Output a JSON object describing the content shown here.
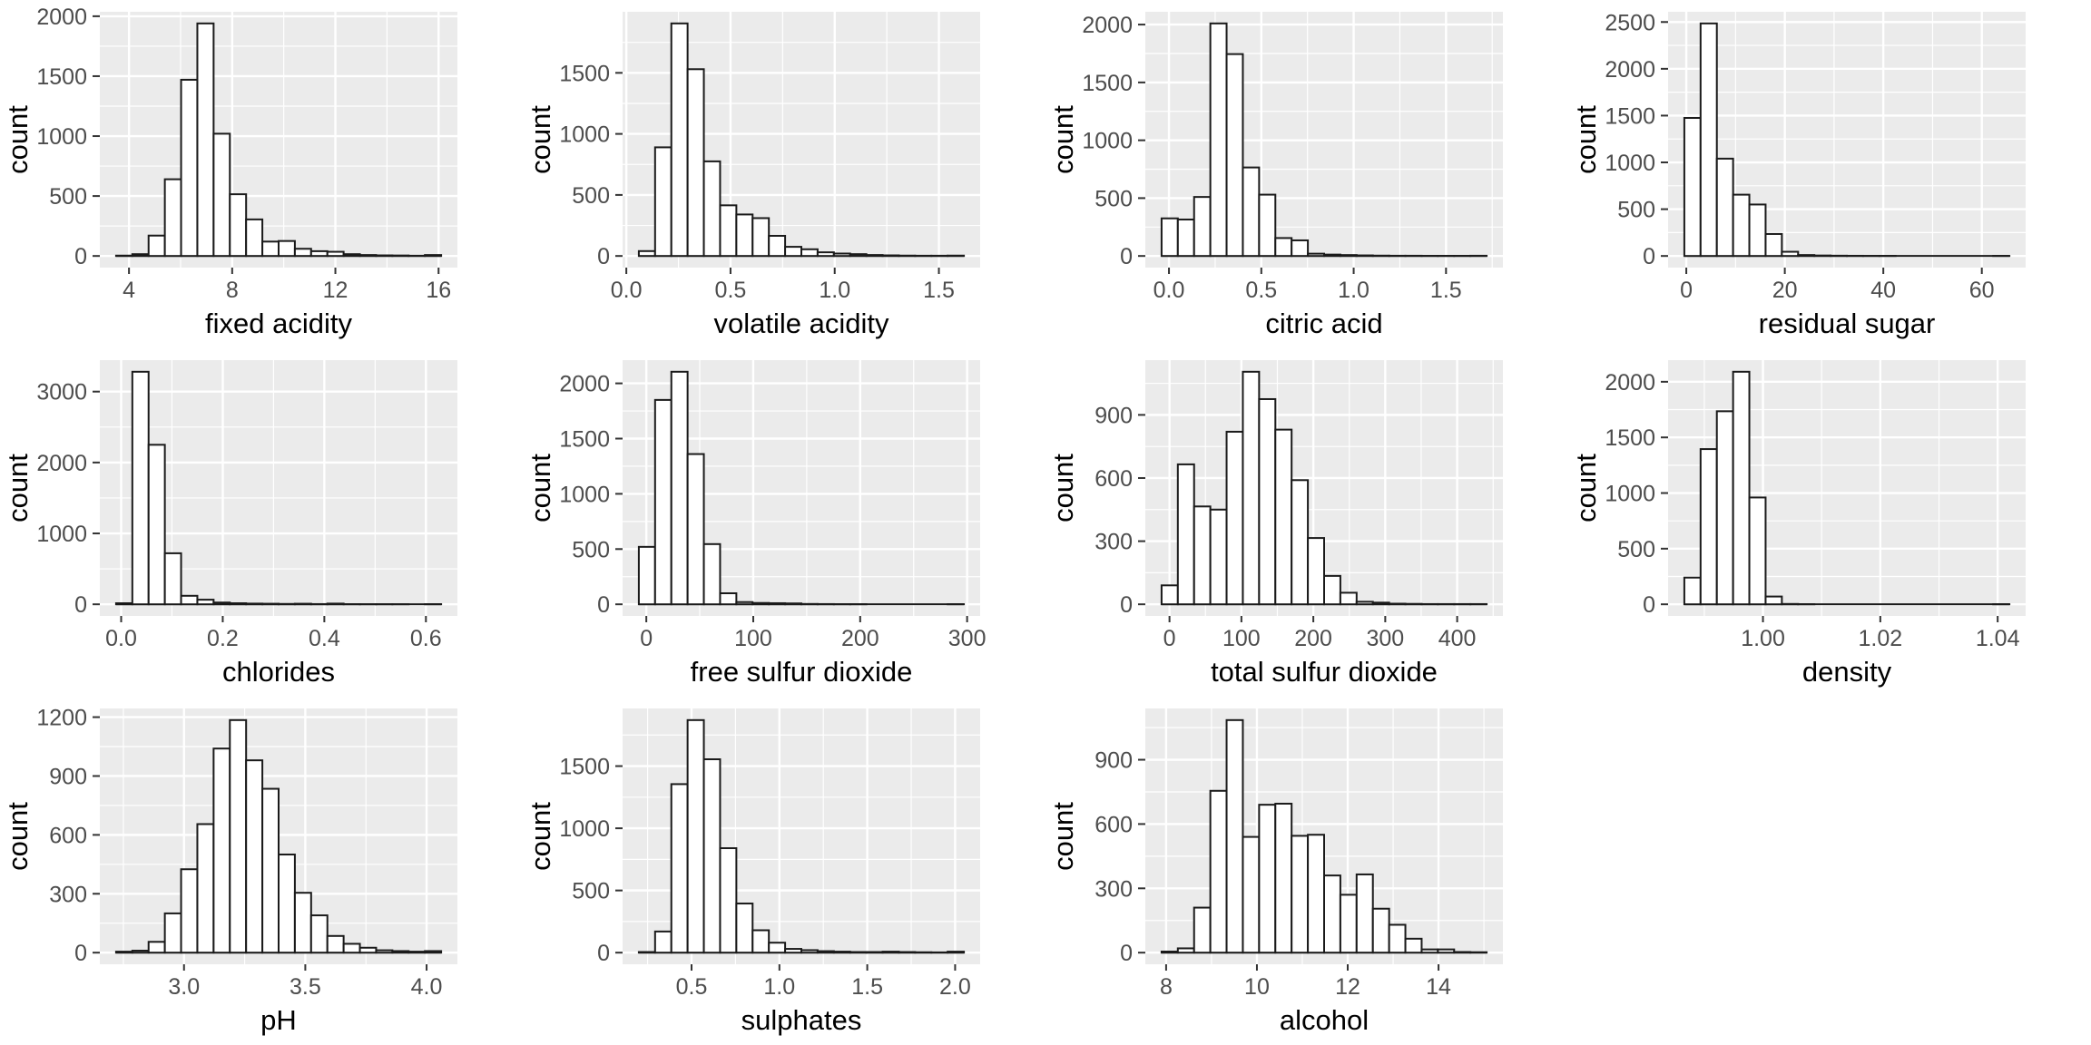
{
  "figure": {
    "description": "Grid of 11 histograms of wine physicochemical attributes",
    "ylabel_shared": "count",
    "grid_rows": 3,
    "grid_cols": 4,
    "colors": {
      "panel_background": "#EBEBEB",
      "grid_major": "#FFFFFF",
      "grid_minor": "#FFFFFF",
      "bar_fill": "#FFFFFF",
      "bar_stroke": "#1A1A1A",
      "tick_mark": "#333333",
      "tick_label": "#4D4D4D",
      "axis_title": "#000000",
      "page_background": "#FFFFFF"
    }
  },
  "chart_data": [
    {
      "type": "bar",
      "name": "fixed-acidity",
      "xlabel": "fixed acidity",
      "ylabel": "count",
      "bin_start": 3.5,
      "bin_width": 0.63,
      "values": [
        3,
        15,
        170,
        640,
        1470,
        1940,
        1020,
        515,
        305,
        120,
        125,
        60,
        40,
        35,
        15,
        8,
        5,
        4,
        2,
        8
      ],
      "x_ticks": [
        {
          "v": 4,
          "label": "4"
        },
        {
          "v": 8,
          "label": "8"
        },
        {
          "v": 12,
          "label": "12"
        },
        {
          "v": 16,
          "label": "16"
        }
      ],
      "y_ticks": [
        {
          "v": 0,
          "label": "0"
        },
        {
          "v": 500,
          "label": "500"
        },
        {
          "v": 1000,
          "label": "1000"
        },
        {
          "v": 1500,
          "label": "1500"
        },
        {
          "v": 2000,
          "label": "2000"
        }
      ]
    },
    {
      "type": "bar",
      "name": "volatile-acidity",
      "xlabel": "volatile acidity",
      "ylabel": "count",
      "bin_start": 0.06,
      "bin_width": 0.078,
      "values": [
        40,
        890,
        1905,
        1530,
        775,
        415,
        340,
        310,
        165,
        75,
        55,
        30,
        20,
        15,
        8,
        5,
        3,
        2,
        2,
        3
      ],
      "x_ticks": [
        {
          "v": 0,
          "label": "0.0"
        },
        {
          "v": 0.5,
          "label": "0.5"
        },
        {
          "v": 1.0,
          "label": "1.0"
        },
        {
          "v": 1.5,
          "label": "1.5"
        }
      ],
      "y_ticks": [
        {
          "v": 0,
          "label": "0"
        },
        {
          "v": 500,
          "label": "500"
        },
        {
          "v": 1000,
          "label": "1000"
        },
        {
          "v": 1500,
          "label": "1500"
        }
      ]
    },
    {
      "type": "bar",
      "name": "citric-acid",
      "xlabel": "citric acid",
      "ylabel": "count",
      "bin_start": -0.04,
      "bin_width": 0.088,
      "values": [
        325,
        315,
        510,
        2010,
        1745,
        765,
        530,
        155,
        135,
        20,
        12,
        8,
        5,
        3,
        2,
        2,
        1,
        1,
        1,
        2
      ],
      "x_ticks": [
        {
          "v": 0,
          "label": "0.0"
        },
        {
          "v": 0.5,
          "label": "0.5"
        },
        {
          "v": 1.0,
          "label": "1.0"
        },
        {
          "v": 1.5,
          "label": "1.5"
        }
      ],
      "y_ticks": [
        {
          "v": 0,
          "label": "0"
        },
        {
          "v": 500,
          "label": "500"
        },
        {
          "v": 1000,
          "label": "1000"
        },
        {
          "v": 1500,
          "label": "1500"
        },
        {
          "v": 2000,
          "label": "2000"
        }
      ]
    },
    {
      "type": "bar",
      "name": "residual-sugar",
      "xlabel": "residual sugar",
      "ylabel": "count",
      "bin_start": -0.4,
      "bin_width": 3.3,
      "values": [
        1475,
        2485,
        1040,
        655,
        550,
        235,
        45,
        10,
        5,
        3,
        2,
        1,
        1,
        0,
        0,
        0,
        0,
        0,
        0,
        1
      ],
      "x_ticks": [
        {
          "v": 0,
          "label": "0"
        },
        {
          "v": 20,
          "label": "20"
        },
        {
          "v": 40,
          "label": "40"
        },
        {
          "v": 60,
          "label": "60"
        }
      ],
      "y_ticks": [
        {
          "v": 0,
          "label": "0"
        },
        {
          "v": 500,
          "label": "500"
        },
        {
          "v": 1000,
          "label": "1000"
        },
        {
          "v": 1500,
          "label": "1500"
        },
        {
          "v": 2000,
          "label": "2000"
        },
        {
          "v": 2500,
          "label": "2500"
        }
      ]
    },
    {
      "type": "bar",
      "name": "chlorides",
      "xlabel": "chlorides",
      "ylabel": "count",
      "bin_start": -0.01,
      "bin_width": 0.032,
      "values": [
        15,
        3280,
        2250,
        720,
        120,
        65,
        25,
        15,
        10,
        8,
        5,
        8,
        3,
        10,
        2,
        1,
        1,
        1,
        0,
        2
      ],
      "x_ticks": [
        {
          "v": 0,
          "label": "0.0"
        },
        {
          "v": 0.2,
          "label": "0.2"
        },
        {
          "v": 0.4,
          "label": "0.4"
        },
        {
          "v": 0.6,
          "label": "0.6"
        }
      ],
      "y_ticks": [
        {
          "v": 0,
          "label": "0"
        },
        {
          "v": 1000,
          "label": "1000"
        },
        {
          "v": 2000,
          "label": "2000"
        },
        {
          "v": 3000,
          "label": "3000"
        }
      ]
    },
    {
      "type": "bar",
      "name": "free-sulfur-dioxide",
      "xlabel": "free sulfur dioxide",
      "ylabel": "count",
      "bin_start": -7,
      "bin_width": 15.2,
      "values": [
        520,
        1850,
        2105,
        1360,
        545,
        100,
        20,
        12,
        10,
        8,
        3,
        2,
        1,
        1,
        0,
        0,
        0,
        0,
        0,
        1
      ],
      "x_ticks": [
        {
          "v": 0,
          "label": "0"
        },
        {
          "v": 100,
          "label": "100"
        },
        {
          "v": 200,
          "label": "200"
        },
        {
          "v": 300,
          "label": "300"
        }
      ],
      "y_ticks": [
        {
          "v": 0,
          "label": "0"
        },
        {
          "v": 500,
          "label": "500"
        },
        {
          "v": 1000,
          "label": "1000"
        },
        {
          "v": 1500,
          "label": "1500"
        },
        {
          "v": 2000,
          "label": "2000"
        }
      ]
    },
    {
      "type": "bar",
      "name": "total-sulfur-dioxide",
      "xlabel": "total sulfur dioxide",
      "ylabel": "count",
      "bin_start": -11,
      "bin_width": 22.6,
      "values": [
        90,
        665,
        465,
        450,
        820,
        1105,
        975,
        830,
        590,
        315,
        135,
        55,
        12,
        8,
        3,
        2,
        1,
        1,
        1,
        1
      ],
      "x_ticks": [
        {
          "v": 0,
          "label": "0"
        },
        {
          "v": 100,
          "label": "100"
        },
        {
          "v": 200,
          "label": "200"
        },
        {
          "v": 300,
          "label": "300"
        },
        {
          "v": 400,
          "label": "400"
        }
      ],
      "y_ticks": [
        {
          "v": 0,
          "label": "0"
        },
        {
          "v": 300,
          "label": "300"
        },
        {
          "v": 600,
          "label": "600"
        },
        {
          "v": 900,
          "label": "900"
        }
      ]
    },
    {
      "type": "bar",
      "name": "density",
      "xlabel": "density",
      "ylabel": "count",
      "bin_start": 0.9866,
      "bin_width": 0.00277,
      "values": [
        240,
        1395,
        1735,
        2090,
        960,
        70,
        3,
        1,
        0,
        0,
        0,
        0,
        0,
        0,
        0,
        0,
        0,
        0,
        0,
        1
      ],
      "x_ticks": [
        {
          "v": 1.0,
          "label": "1.00"
        },
        {
          "v": 1.02,
          "label": "1.02"
        },
        {
          "v": 1.04,
          "label": "1.04"
        }
      ],
      "y_ticks": [
        {
          "v": 0,
          "label": "0"
        },
        {
          "v": 500,
          "label": "500"
        },
        {
          "v": 1000,
          "label": "1000"
        },
        {
          "v": 1500,
          "label": "1500"
        },
        {
          "v": 2000,
          "label": "2000"
        }
      ]
    },
    {
      "type": "bar",
      "name": "ph",
      "xlabel": "pH",
      "ylabel": "count",
      "bin_start": 2.72,
      "bin_width": 0.067,
      "values": [
        5,
        10,
        55,
        200,
        425,
        655,
        1040,
        1185,
        980,
        835,
        500,
        305,
        190,
        85,
        45,
        25,
        12,
        8,
        5,
        8
      ],
      "x_ticks": [
        {
          "v": 3.0,
          "label": "3.0"
        },
        {
          "v": 3.5,
          "label": "3.5"
        },
        {
          "v": 4.0,
          "label": "4.0"
        }
      ],
      "y_ticks": [
        {
          "v": 0,
          "label": "0"
        },
        {
          "v": 300,
          "label": "300"
        },
        {
          "v": 600,
          "label": "600"
        },
        {
          "v": 900,
          "label": "900"
        },
        {
          "v": 1200,
          "label": "1200"
        }
      ]
    },
    {
      "type": "bar",
      "name": "sulphates",
      "xlabel": "sulphates",
      "ylabel": "count",
      "bin_start": 0.2,
      "bin_width": 0.0925,
      "values": [
        5,
        170,
        1355,
        1870,
        1555,
        840,
        395,
        180,
        80,
        30,
        20,
        12,
        8,
        5,
        5,
        8,
        5,
        3,
        2,
        8
      ],
      "x_ticks": [
        {
          "v": 0.5,
          "label": "0.5"
        },
        {
          "v": 1.0,
          "label": "1.0"
        },
        {
          "v": 1.5,
          "label": "1.5"
        },
        {
          "v": 2.0,
          "label": "2.0"
        }
      ],
      "y_ticks": [
        {
          "v": 0,
          "label": "0"
        },
        {
          "v": 500,
          "label": "500"
        },
        {
          "v": 1000,
          "label": "1000"
        },
        {
          "v": 1500,
          "label": "1500"
        }
      ]
    },
    {
      "type": "bar",
      "name": "alcohol",
      "xlabel": "alcohol",
      "ylabel": "count",
      "bin_start": 7.9,
      "bin_width": 0.358,
      "values": [
        5,
        20,
        210,
        755,
        1085,
        540,
        690,
        695,
        545,
        550,
        360,
        270,
        365,
        205,
        130,
        65,
        15,
        15,
        3,
        2
      ],
      "x_ticks": [
        {
          "v": 8,
          "label": "8"
        },
        {
          "v": 10,
          "label": "10"
        },
        {
          "v": 12,
          "label": "12"
        },
        {
          "v": 14,
          "label": "14"
        }
      ],
      "y_ticks": [
        {
          "v": 0,
          "label": "0"
        },
        {
          "v": 300,
          "label": "300"
        },
        {
          "v": 600,
          "label": "600"
        },
        {
          "v": 900,
          "label": "900"
        }
      ]
    }
  ]
}
